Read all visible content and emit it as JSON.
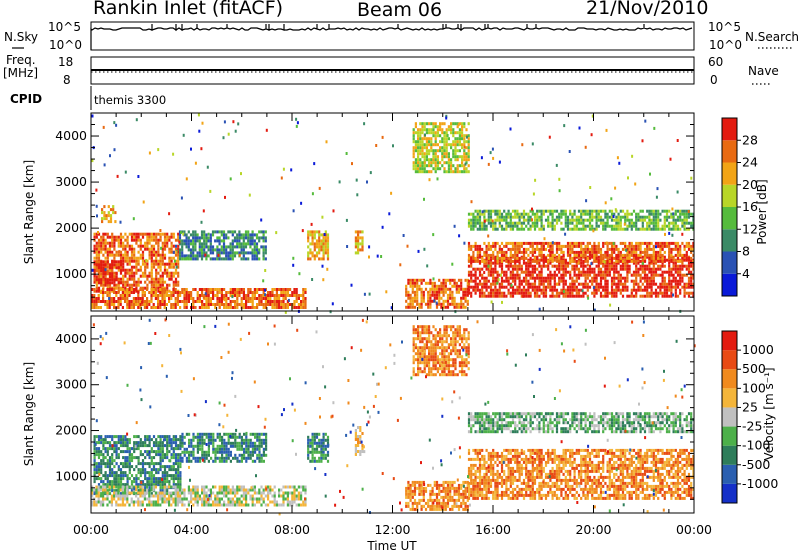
{
  "header": {
    "station": "Rankin Inlet (fitACF)",
    "beam": "Beam 06",
    "date": "21/Nov/2010"
  },
  "top_panels": {
    "nsky_label": "N.Sky",
    "nsky_ticks": [
      "10^5",
      "10^0"
    ],
    "nsearch_label": "N.Search",
    "nsearch_ticks": [
      "10^5",
      "10^0"
    ],
    "freq_label": "Freq.",
    "freq_unit": "[MHz]",
    "freq_ticks": [
      "18",
      "8"
    ],
    "nave_label": "Nave",
    "nave_ticks": [
      "60",
      "0"
    ],
    "cpid_label": "CPID",
    "cpid_value": "themis 3300"
  },
  "chart_data": [
    {
      "type": "heatmap",
      "name": "power",
      "ylabel": "Slant Range [km]",
      "ylim": [
        200,
        4500
      ],
      "yticks": [
        "1000",
        "2000",
        "3000",
        "4000"
      ],
      "ytick_values": [
        1000,
        2000,
        3000,
        4000
      ],
      "xlim": [
        0,
        24
      ],
      "xticks": [
        "00:00",
        "04:00",
        "08:00",
        "12:00",
        "16:00",
        "20:00",
        "00:00"
      ],
      "colorbar_label": "Power [dB]",
      "colorbar_ticks": [
        "4",
        "8",
        "12",
        "16",
        "20",
        "24",
        "28"
      ],
      "colorbar_colors": [
        "#0a1ad8",
        "#2a52b4",
        "#3a8a66",
        "#55bb3c",
        "#b8d628",
        "#f2a416",
        "#e86a12",
        "#e31b10"
      ],
      "regions": [
        {
          "t0": 0.1,
          "t1": 3.5,
          "r0": 600,
          "r1": 1900,
          "level": 6
        },
        {
          "t0": 0.1,
          "t1": 1.2,
          "r0": 800,
          "r1": 1300,
          "level": 7
        },
        {
          "t0": 0.4,
          "t1": 1.0,
          "r0": 2150,
          "r1": 2500,
          "level": 5
        },
        {
          "t0": 0.0,
          "t1": 8.5,
          "r0": 250,
          "r1": 700,
          "level": 6
        },
        {
          "t0": 3.5,
          "t1": 7.0,
          "r0": 1300,
          "r1": 1950,
          "level": 2
        },
        {
          "t0": 8.6,
          "t1": 9.4,
          "r0": 1300,
          "r1": 1950,
          "level": 5
        },
        {
          "t0": 10.5,
          "t1": 10.8,
          "r0": 1450,
          "r1": 1950,
          "level": 5
        },
        {
          "t0": 12.5,
          "t1": 15.0,
          "r0": 300,
          "r1": 900,
          "level": 6
        },
        {
          "t0": 15.0,
          "t1": 24.0,
          "r0": 500,
          "r1": 1400,
          "level": 7
        },
        {
          "t0": 15.0,
          "t1": 24.0,
          "r0": 1300,
          "r1": 1700,
          "level": 6
        },
        {
          "t0": 12.8,
          "t1": 15.0,
          "r0": 3200,
          "r1": 4300,
          "level": 4
        },
        {
          "t0": 15.0,
          "t1": 24.0,
          "r0": 2000,
          "r1": 2400,
          "level": 3
        }
      ]
    },
    {
      "type": "heatmap",
      "name": "velocity",
      "ylabel": "Slant Range [km]",
      "ylim": [
        200,
        4500
      ],
      "yticks": [
        "1000",
        "2000",
        "3000",
        "4000"
      ],
      "ytick_values": [
        1000,
        2000,
        3000,
        4000
      ],
      "xlim": [
        0,
        24
      ],
      "xlabel": "Time UT",
      "xticks": [
        "00:00",
        "04:00",
        "08:00",
        "12:00",
        "16:00",
        "20:00",
        "00:00"
      ],
      "colorbar_label": "Velocity [m s⁻¹]",
      "colorbar_ticks": [
        "1000",
        "500",
        "100",
        "25",
        "-25",
        "-100",
        "-500",
        "-1000"
      ],
      "colorbar_colors": [
        "#1530c8",
        "#2a5fb0",
        "#2e7d5a",
        "#4db04a",
        "#c0c0c0",
        "#f4b53a",
        "#f08a1e",
        "#e84a14",
        "#e31b10"
      ],
      "regions": [
        {
          "t0": 0.1,
          "t1": 3.6,
          "r0": 600,
          "r1": 1900,
          "level": 2
        },
        {
          "t0": 3.6,
          "t1": 7.0,
          "r0": 1350,
          "r1": 1950,
          "level": 2
        },
        {
          "t0": 0.0,
          "t1": 8.5,
          "r0": 350,
          "r1": 800,
          "level": 4
        },
        {
          "t0": 8.6,
          "t1": 9.4,
          "r0": 1300,
          "r1": 1950,
          "level": 2
        },
        {
          "t0": 10.5,
          "t1": 10.8,
          "r0": 1500,
          "r1": 2100,
          "level": 5
        },
        {
          "t0": 12.5,
          "t1": 15.0,
          "r0": 300,
          "r1": 900,
          "level": 6
        },
        {
          "t0": 15.0,
          "t1": 24.0,
          "r0": 500,
          "r1": 1600,
          "level": 6
        },
        {
          "t0": 12.8,
          "t1": 15.0,
          "r0": 3200,
          "r1": 4300,
          "level": 6
        },
        {
          "t0": 15.0,
          "t1": 24.0,
          "r0": 2000,
          "r1": 2400,
          "level": 3
        }
      ]
    }
  ]
}
